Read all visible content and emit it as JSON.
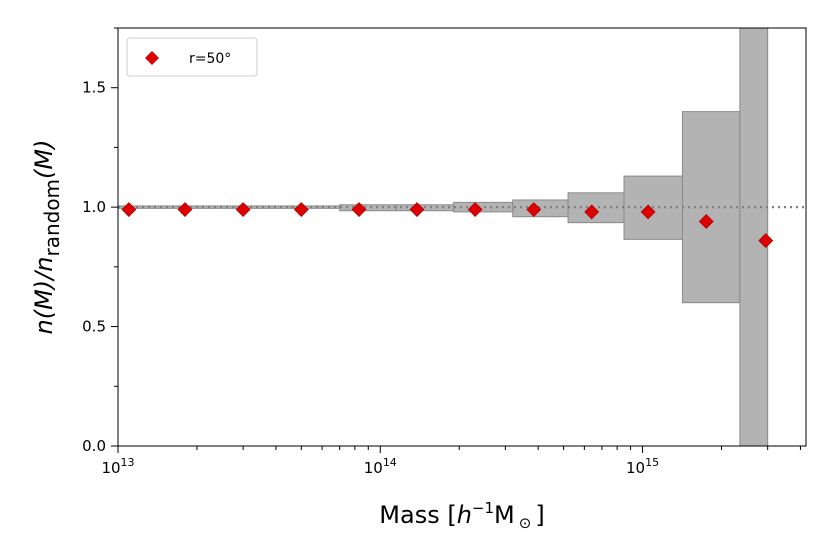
{
  "chart_data": {
    "type": "scatter",
    "x_scale": "log",
    "xlim": [
      10000000000000.0,
      4200000000000000.0
    ],
    "ylim": [
      0.0,
      1.75
    ],
    "xlabel": {
      "prefix": "Mass [",
      "h": "h",
      "exp": "−1",
      "m": "M",
      "sun": "⊙",
      "suffix": "]"
    },
    "ylabel": {
      "main": "n(M)/n",
      "sub": "random",
      "tail": "(M)"
    },
    "x_ticks": [
      {
        "value": 10000000000000.0,
        "base": "10",
        "exp": "13"
      },
      {
        "value": 100000000000000.0,
        "base": "10",
        "exp": "14"
      },
      {
        "value": 1000000000000000.0,
        "base": "10",
        "exp": "15"
      }
    ],
    "y_ticks": [
      {
        "value": 0.0,
        "label": "0.0"
      },
      {
        "value": 0.5,
        "label": "0.5"
      },
      {
        "value": 1.0,
        "label": "1.0"
      },
      {
        "value": 1.5,
        "label": "1.5"
      }
    ],
    "reference_line": {
      "y": 1.0,
      "style": "dotted",
      "color": "#808080"
    },
    "series": [
      {
        "name": "r=50°",
        "color": "#dd0000",
        "marker": "diamond",
        "x": [
          11000000000000.0,
          18000000000000.0,
          30000000000000.0,
          50000000000000.0,
          83000000000000.0,
          138000000000000.0,
          230000000000000.0,
          385000000000000.0,
          640000000000000.0,
          1050000000000000.0,
          1750000000000000.0,
          2950000000000000.0
        ],
        "y": [
          0.99,
          0.99,
          0.99,
          0.99,
          0.99,
          0.99,
          0.99,
          0.99,
          0.98,
          0.98,
          0.94,
          0.86
        ]
      }
    ],
    "error_bands": {
      "color": "#b3b3b3",
      "edges": [
        10000000000000.0,
        17000000000000.0,
        28000000000000.0,
        46000000000000.0,
        70000000000000.0,
        115000000000000.0,
        190000000000000.0,
        320000000000000.0,
        520000000000000.0,
        850000000000000.0,
        1420000000000000.0,
        2350000000000000.0,
        3000000000000000.0
      ],
      "lower": [
        0.995,
        0.995,
        0.995,
        0.995,
        0.985,
        0.985,
        0.98,
        0.96,
        0.935,
        0.865,
        0.6,
        0.0
      ],
      "upper": [
        1.005,
        1.005,
        1.005,
        1.005,
        1.01,
        1.01,
        1.02,
        1.03,
        1.06,
        1.13,
        1.4,
        1.75
      ]
    },
    "legend": {
      "position": "top-left"
    },
    "grid": false
  }
}
